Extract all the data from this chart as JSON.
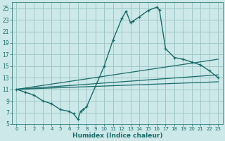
{
  "title": "",
  "xlabel": "Humidex (Indice chaleur)",
  "ylabel": "",
  "bg_color": "#cce8e8",
  "grid_color": "#a0c8c8",
  "line_color": "#1a6b6b",
  "xlim": [
    -0.5,
    23.5
  ],
  "ylim": [
    5,
    26
  ],
  "xticks": [
    0,
    1,
    2,
    3,
    4,
    5,
    6,
    7,
    8,
    9,
    10,
    11,
    12,
    13,
    14,
    15,
    16,
    17,
    18,
    19,
    20,
    21,
    22,
    23
  ],
  "yticks": [
    5,
    7,
    9,
    11,
    13,
    15,
    17,
    19,
    21,
    23,
    25
  ],
  "main_x": [
    0,
    1,
    2,
    3,
    4,
    5,
    6,
    6.5,
    7,
    7.3,
    7.6,
    8,
    10,
    11,
    12,
    12.5,
    13,
    13.3,
    14,
    15,
    16,
    16.3,
    17,
    18,
    19,
    20,
    21,
    22,
    23
  ],
  "main_y": [
    11,
    10.5,
    10,
    9,
    8.5,
    7.5,
    7.2,
    6.8,
    5.8,
    7.2,
    7.5,
    8,
    15,
    19.5,
    23.2,
    24.5,
    22.5,
    22.8,
    23.5,
    24.6,
    25.2,
    24.7,
    18,
    16.5,
    16.2,
    15.7,
    15.2,
    14.2,
    13
  ],
  "line2_x": [
    0,
    23
  ],
  "line2_y": [
    11,
    12.3
  ],
  "line3_x": [
    0,
    23
  ],
  "line3_y": [
    11,
    13.5
  ],
  "line4_x": [
    0,
    23
  ],
  "line4_y": [
    11,
    16.2
  ]
}
